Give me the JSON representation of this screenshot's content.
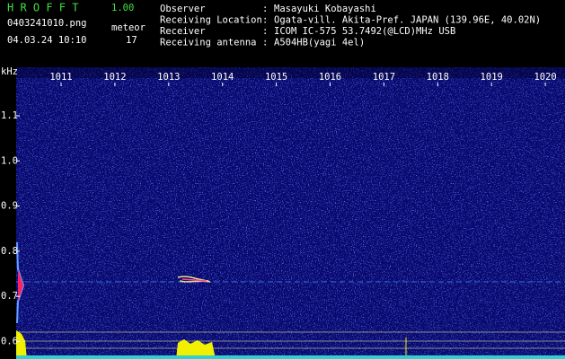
{
  "header": {
    "app_name": "H R O F F T",
    "version": "1.00",
    "filename": "0403241010.png",
    "datetime": "04.03.24 10:10",
    "meteor_label": "meteor",
    "meteor_count": "17",
    "info": [
      {
        "label": "Observer",
        "value": "Masayuki Kobayashi"
      },
      {
        "label": "Receiving Location",
        "value": "Ogata-vill. Akita-Pref. JAPAN (139.96E, 40.02N)"
      },
      {
        "label": "Receiver",
        "value": "ICOM IC-575 53.7492(@LCD)MHz USB"
      },
      {
        "label": "Receiving antenna",
        "value": "A504HB(yagi 4el)"
      }
    ]
  },
  "spectrogram": {
    "y_unit": "kHz",
    "x_labels": [
      "1011",
      "1012",
      "1013",
      "1014",
      "1015",
      "1016",
      "1017",
      "1018",
      "1019",
      "1020"
    ],
    "y_labels": [
      "1.1",
      "1.0",
      "0.9",
      "0.8",
      "0.7",
      "0.6"
    ]
  }
}
